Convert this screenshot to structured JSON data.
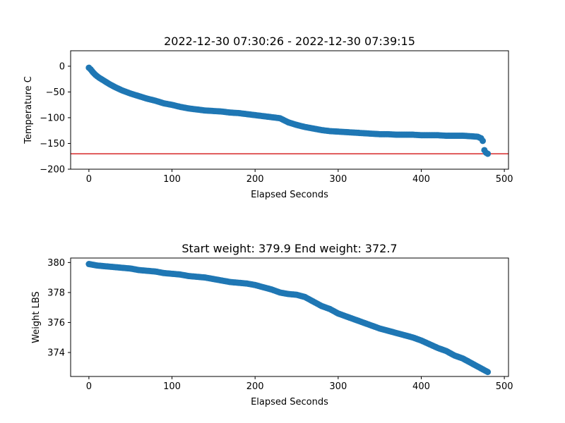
{
  "chart_data": [
    {
      "type": "scatter",
      "title": "2022-12-30 07:30:26 - 2022-12-30 07:39:15",
      "xlabel": "Elapsed Seconds",
      "ylabel": "Temperature C",
      "xlim": [
        -22,
        505
      ],
      "ylim": [
        -200,
        30
      ],
      "xticks": [
        0,
        100,
        200,
        300,
        400,
        500
      ],
      "yticks": [
        0,
        -50,
        -100,
        -150,
        -200
      ],
      "xtick_labels": [
        "0",
        "100",
        "200",
        "300",
        "400",
        "500"
      ],
      "ytick_labels": [
        "0",
        "−50",
        "−100",
        "−150",
        "−200"
      ],
      "grid": false,
      "marker_color": "#1f77b4",
      "reference_line": {
        "y": -170,
        "color": "#d62728"
      },
      "series": [
        {
          "x": [
            0,
            2,
            5,
            8,
            12,
            18,
            25,
            32,
            40,
            50,
            60,
            70,
            80,
            90,
            100,
            110,
            120,
            130,
            140,
            150,
            160,
            170,
            180,
            190,
            200,
            210,
            220,
            230,
            240,
            250,
            260,
            270,
            280,
            290,
            300,
            310,
            320,
            330,
            340,
            350,
            360,
            370,
            380,
            390,
            400,
            410,
            420,
            430,
            440,
            450,
            460,
            468,
            472,
            474,
            476,
            478,
            480
          ],
          "y": [
            -3,
            -6,
            -12,
            -17,
            -22,
            -28,
            -35,
            -41,
            -47,
            -53,
            -58,
            -63,
            -67,
            -72,
            -75,
            -79,
            -82,
            -84,
            -86,
            -87,
            -88,
            -90,
            -91,
            -93,
            -95,
            -97,
            -99,
            -101,
            -109,
            -114,
            -118,
            -121,
            -124,
            -126,
            -127,
            -128,
            -129,
            -130,
            -131,
            -132,
            -132,
            -133,
            -133,
            -133,
            -134,
            -134,
            -134,
            -135,
            -135,
            -135,
            -136,
            -137,
            -140,
            -145,
            -163,
            -168,
            -170
          ]
        }
      ]
    },
    {
      "type": "scatter",
      "title": "Start weight: 379.9 End weight: 372.7",
      "xlabel": "Elapsed Seconds",
      "ylabel": "Weight LBS",
      "xlim": [
        -22,
        505
      ],
      "ylim": [
        372.4,
        380.3
      ],
      "xticks": [
        0,
        100,
        200,
        300,
        400,
        500
      ],
      "yticks": [
        374,
        376,
        378,
        380
      ],
      "xtick_labels": [
        "0",
        "100",
        "200",
        "300",
        "400",
        "500"
      ],
      "ytick_labels": [
        "374",
        "376",
        "378",
        "380"
      ],
      "grid": false,
      "marker_color": "#1f77b4",
      "series": [
        {
          "x": [
            0,
            10,
            20,
            30,
            40,
            50,
            60,
            70,
            80,
            90,
            100,
            110,
            120,
            130,
            140,
            150,
            160,
            170,
            180,
            190,
            200,
            210,
            220,
            230,
            240,
            250,
            260,
            270,
            280,
            290,
            300,
            310,
            320,
            330,
            340,
            350,
            360,
            370,
            380,
            390,
            400,
            410,
            420,
            430,
            440,
            450,
            460,
            470,
            480
          ],
          "y": [
            379.9,
            379.8,
            379.75,
            379.7,
            379.65,
            379.6,
            379.5,
            379.45,
            379.4,
            379.3,
            379.25,
            379.2,
            379.1,
            379.05,
            379.0,
            378.9,
            378.8,
            378.7,
            378.65,
            378.6,
            378.5,
            378.35,
            378.2,
            378.0,
            377.9,
            377.85,
            377.7,
            377.4,
            377.1,
            376.9,
            376.6,
            376.4,
            376.2,
            376.0,
            375.8,
            375.6,
            375.45,
            375.3,
            375.15,
            375.0,
            374.8,
            374.55,
            374.3,
            374.1,
            373.8,
            373.6,
            373.3,
            373.0,
            372.7
          ]
        }
      ]
    }
  ]
}
